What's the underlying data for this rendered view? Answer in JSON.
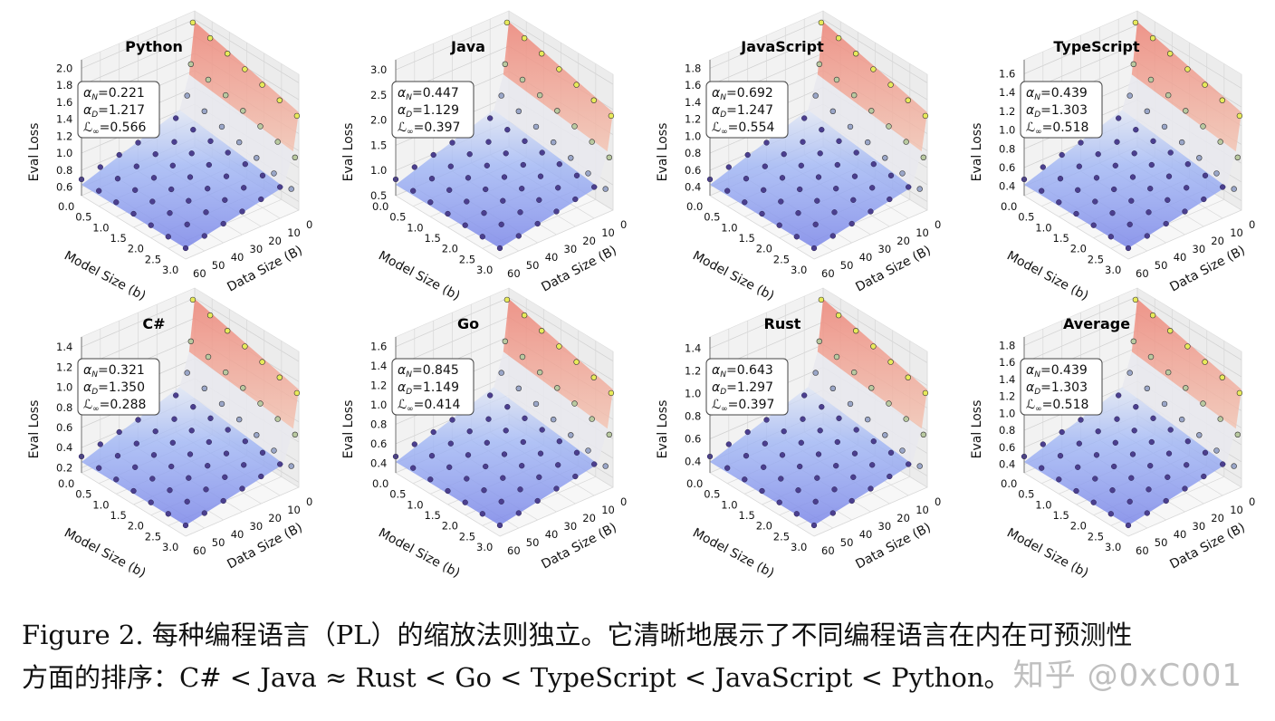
{
  "caption": {
    "line1": "Figure 2. 每种编程语言（PL）的缩放法则独立。它清晰地展示了不同编程语言在内在可预测性",
    "line2": "方面的排序：C# < Java ≈ Rust < Go < TypeScript < JavaScript < Python。"
  },
  "watermark": "知乎 @0xC001",
  "chart_data": [
    {
      "type": "surface3d",
      "title": "Python",
      "xlabel": "Model Size (b)",
      "ylabel": "Data Size (B)",
      "zlabel": "Eval Loss",
      "x_ticks": [
        "0.0",
        "0.5",
        "1.0",
        "1.5",
        "2.0",
        "2.5",
        "3.0"
      ],
      "y_ticks": [
        "0",
        "10",
        "20",
        "30",
        "40",
        "50",
        "60"
      ],
      "z_ticks": [
        "0.6",
        "0.8",
        "1.0",
        "1.2",
        "1.4",
        "1.6",
        "1.8",
        "2.0"
      ],
      "zlim": [
        0.5,
        2.1
      ],
      "stats": {
        "alpha_N": "0.221",
        "alpha_D": "1.217",
        "L_inf": "0.566"
      }
    },
    {
      "type": "surface3d",
      "title": "Java",
      "xlabel": "Model Size (b)",
      "ylabel": "Data Size (B)",
      "zlabel": "Eval Loss",
      "x_ticks": [
        "0.0",
        "0.5",
        "1.0",
        "1.5",
        "2.0",
        "2.5",
        "3.0"
      ],
      "y_ticks": [
        "0",
        "10",
        "20",
        "30",
        "40",
        "50",
        "60"
      ],
      "z_ticks": [
        "0.5",
        "1.0",
        "1.5",
        "2.0",
        "2.5",
        "3.0"
      ],
      "zlim": [
        0.5,
        3.2
      ],
      "stats": {
        "alpha_N": "0.447",
        "alpha_D": "1.129",
        "L_inf": "0.397"
      }
    },
    {
      "type": "surface3d",
      "title": "JavaScript",
      "xlabel": "Model Size (b)",
      "ylabel": "Data Size (B)",
      "zlabel": "Eval Loss",
      "x_ticks": [
        "0.0",
        "0.5",
        "1.0",
        "1.5",
        "2.0",
        "2.5",
        "3.0"
      ],
      "y_ticks": [
        "0",
        "10",
        "20",
        "30",
        "40",
        "50",
        "60"
      ],
      "z_ticks": [
        "0.4",
        "0.6",
        "0.8",
        "1.0",
        "1.2",
        "1.4",
        "1.6",
        "1.8"
      ],
      "zlim": [
        0.3,
        1.9
      ],
      "stats": {
        "alpha_N": "0.692",
        "alpha_D": "1.247",
        "L_inf": "0.554"
      }
    },
    {
      "type": "surface3d",
      "title": "TypeScript",
      "xlabel": "Model Size (b)",
      "ylabel": "Data Size (B)",
      "zlabel": "Eval Loss",
      "x_ticks": [
        "0.0",
        "0.5",
        "1.0",
        "1.5",
        "2.0",
        "2.5",
        "3.0"
      ],
      "y_ticks": [
        "0",
        "10",
        "20",
        "30",
        "40",
        "50",
        "60"
      ],
      "z_ticks": [
        "0.4",
        "0.6",
        "0.8",
        "1.0",
        "1.2",
        "1.4",
        "1.6"
      ],
      "zlim": [
        0.3,
        1.75
      ],
      "stats": {
        "alpha_N": "0.439",
        "alpha_D": "1.303",
        "L_inf": "0.518"
      }
    },
    {
      "type": "surface3d",
      "title": "C#",
      "xlabel": "Model Size (b)",
      "ylabel": "Data Size (B)",
      "zlabel": "Eval Loss",
      "x_ticks": [
        "0.0",
        "0.5",
        "1.0",
        "1.5",
        "2.0",
        "2.5",
        "3.0"
      ],
      "y_ticks": [
        "0",
        "10",
        "20",
        "30",
        "40",
        "50",
        "60"
      ],
      "z_ticks": [
        "0.2",
        "0.4",
        "0.6",
        "0.8",
        "1.0",
        "1.2",
        "1.4"
      ],
      "zlim": [
        0.15,
        1.5
      ],
      "stats": {
        "alpha_N": "0.321",
        "alpha_D": "1.350",
        "L_inf": "0.288"
      }
    },
    {
      "type": "surface3d",
      "title": "Go",
      "xlabel": "Model Size (b)",
      "ylabel": "Data Size (B)",
      "zlabel": "Eval Loss",
      "x_ticks": [
        "0.0",
        "0.5",
        "1.0",
        "1.5",
        "2.0",
        "2.5",
        "3.0"
      ],
      "y_ticks": [
        "0",
        "10",
        "20",
        "30",
        "40",
        "50",
        "60"
      ],
      "z_ticks": [
        "0.4",
        "0.6",
        "0.8",
        "1.0",
        "1.2",
        "1.4",
        "1.6"
      ],
      "zlim": [
        0.3,
        1.7
      ],
      "stats": {
        "alpha_N": "0.845",
        "alpha_D": "1.149",
        "L_inf": "0.414"
      }
    },
    {
      "type": "surface3d",
      "title": "Rust",
      "xlabel": "Model Size (b)",
      "ylabel": "Data Size (B)",
      "zlabel": "Eval Loss",
      "x_ticks": [
        "0.0",
        "0.5",
        "1.0",
        "1.5",
        "2.0",
        "2.5",
        "3.0"
      ],
      "y_ticks": [
        "0",
        "10",
        "20",
        "30",
        "40",
        "50",
        "60"
      ],
      "z_ticks": [
        "0.4",
        "0.6",
        "0.8",
        "1.0",
        "1.2",
        "1.4"
      ],
      "zlim": [
        0.3,
        1.5
      ],
      "stats": {
        "alpha_N": "0.643",
        "alpha_D": "1.297",
        "L_inf": "0.397"
      }
    },
    {
      "type": "surface3d",
      "title": "Average",
      "xlabel": "Model Size (b)",
      "ylabel": "Data Size (B)",
      "zlabel": "Eval Loss",
      "x_ticks": [
        "0.0",
        "0.5",
        "1.0",
        "1.5",
        "2.0",
        "2.5",
        "3.0"
      ],
      "y_ticks": [
        "0",
        "10",
        "20",
        "30",
        "40",
        "50",
        "60"
      ],
      "z_ticks": [
        "0.4",
        "0.6",
        "0.8",
        "1.0",
        "1.2",
        "1.4",
        "1.6",
        "1.8"
      ],
      "zlim": [
        0.3,
        1.9
      ],
      "stats": {
        "alpha_N": "0.439",
        "alpha_D": "1.303",
        "L_inf": "0.518"
      }
    }
  ]
}
